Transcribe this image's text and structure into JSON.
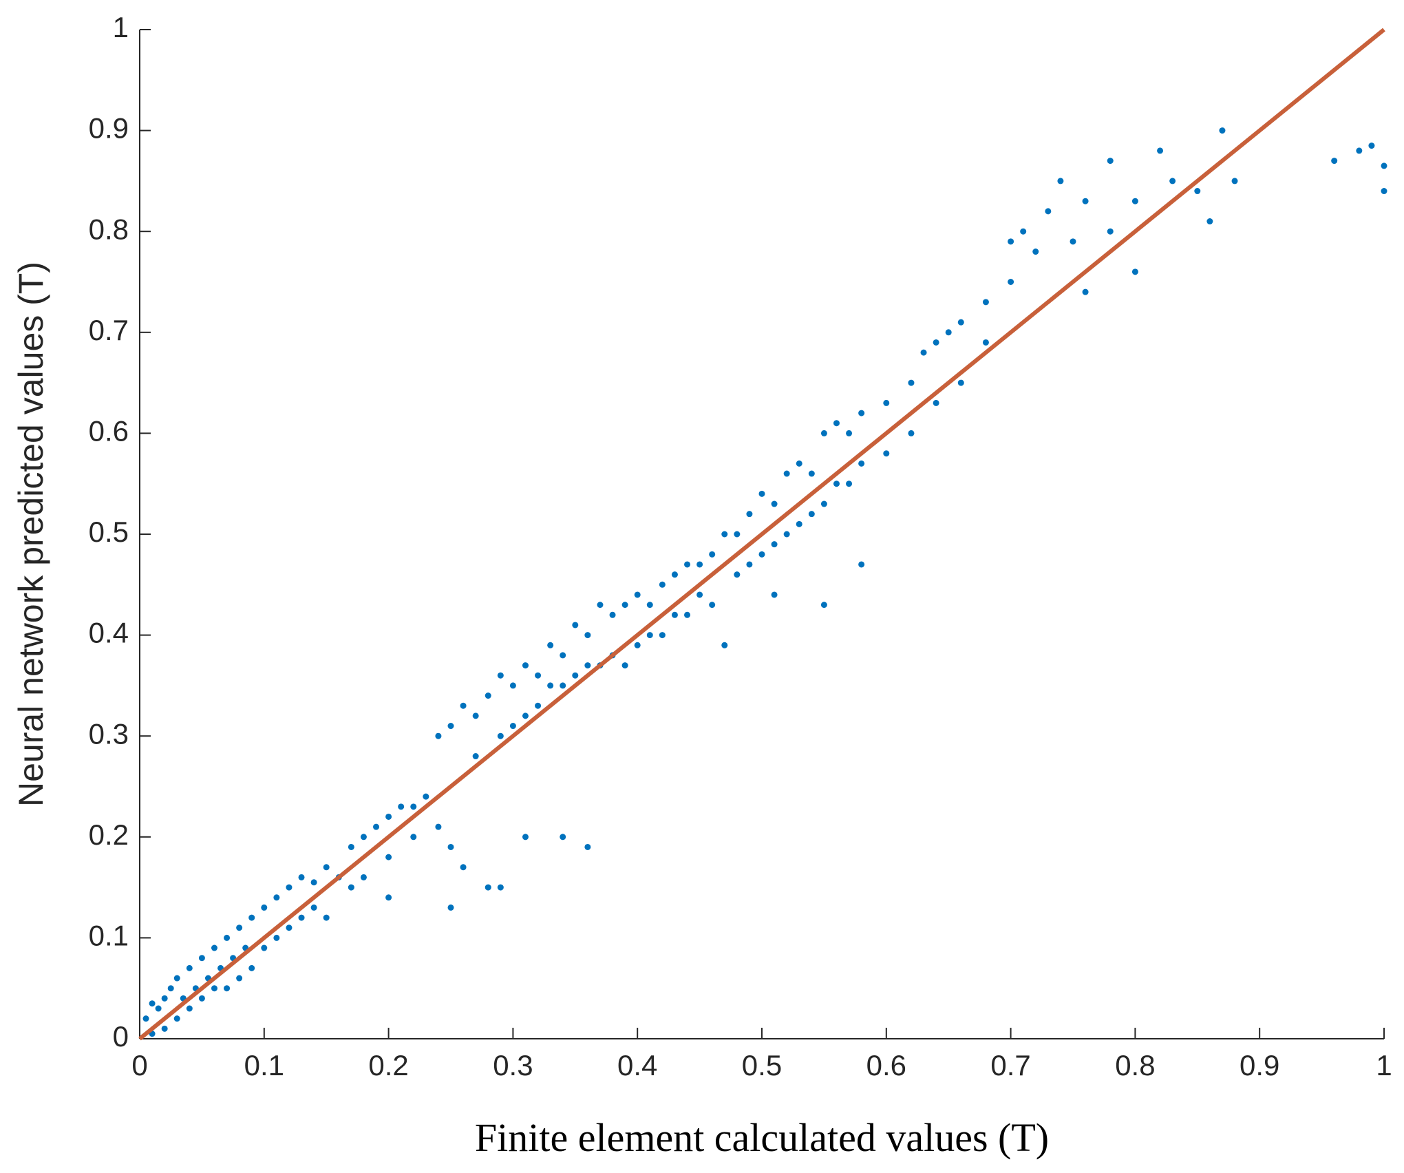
{
  "chart_data": {
    "type": "scatter",
    "xlabel": "Finite element calculated values (T)",
    "ylabel": "Neural network predicted values (T)",
    "xlim": [
      0,
      1
    ],
    "ylim": [
      0,
      1
    ],
    "xticks": [
      0,
      0.1,
      0.2,
      0.3,
      0.4,
      0.5,
      0.6,
      0.7,
      0.8,
      0.9,
      1
    ],
    "yticks": [
      0,
      0.1,
      0.2,
      0.3,
      0.4,
      0.5,
      0.6,
      0.7,
      0.8,
      0.9,
      1
    ],
    "series": [
      {
        "style": "markers",
        "color": "#0072bd",
        "x": [
          0.005,
          0.01,
          0.01,
          0.015,
          0.02,
          0.02,
          0.025,
          0.03,
          0.03,
          0.035,
          0.04,
          0.04,
          0.045,
          0.05,
          0.05,
          0.055,
          0.06,
          0.06,
          0.065,
          0.07,
          0.07,
          0.075,
          0.08,
          0.08,
          0.085,
          0.09,
          0.09,
          0.1,
          0.1,
          0.11,
          0.11,
          0.12,
          0.12,
          0.13,
          0.13,
          0.14,
          0.14,
          0.15,
          0.15,
          0.16,
          0.17,
          0.17,
          0.18,
          0.18,
          0.19,
          0.2,
          0.2,
          0.21,
          0.22,
          0.22,
          0.23,
          0.24,
          0.24,
          0.25,
          0.25,
          0.26,
          0.26,
          0.25,
          0.27,
          0.27,
          0.28,
          0.28,
          0.29,
          0.29,
          0.3,
          0.3,
          0.31,
          0.31,
          0.32,
          0.32,
          0.33,
          0.33,
          0.34,
          0.34,
          0.35,
          0.35,
          0.36,
          0.36,
          0.37,
          0.37,
          0.38,
          0.38,
          0.39,
          0.39,
          0.4,
          0.4,
          0.41,
          0.41,
          0.42,
          0.42,
          0.43,
          0.43,
          0.44,
          0.44,
          0.45,
          0.45,
          0.46,
          0.46,
          0.47,
          0.47,
          0.48,
          0.48,
          0.49,
          0.49,
          0.5,
          0.5,
          0.51,
          0.51,
          0.52,
          0.52,
          0.53,
          0.53,
          0.54,
          0.54,
          0.55,
          0.55,
          0.56,
          0.56,
          0.57,
          0.57,
          0.58,
          0.58,
          0.58,
          0.6,
          0.6,
          0.62,
          0.62,
          0.63,
          0.64,
          0.64,
          0.65,
          0.66,
          0.66,
          0.68,
          0.68,
          0.7,
          0.7,
          0.71,
          0.72,
          0.73,
          0.74,
          0.75,
          0.76,
          0.76,
          0.78,
          0.78,
          0.8,
          0.8,
          0.82,
          0.83,
          0.85,
          0.86,
          0.87,
          0.88,
          0.96,
          0.98,
          0.99,
          1,
          1,
          0.34,
          0.36,
          0.31,
          0.55,
          0.51,
          0.2,
          0.29
        ],
        "values": [
          0.02,
          0.035,
          0.005,
          0.03,
          0.04,
          0.01,
          0.05,
          0.06,
          0.02,
          0.04,
          0.07,
          0.03,
          0.05,
          0.08,
          0.04,
          0.06,
          0.09,
          0.05,
          0.07,
          0.1,
          0.05,
          0.08,
          0.11,
          0.06,
          0.09,
          0.12,
          0.07,
          0.13,
          0.09,
          0.14,
          0.1,
          0.15,
          0.11,
          0.16,
          0.12,
          0.155,
          0.13,
          0.17,
          0.12,
          0.16,
          0.19,
          0.15,
          0.2,
          0.16,
          0.21,
          0.22,
          0.18,
          0.23,
          0.23,
          0.2,
          0.24,
          0.3,
          0.21,
          0.31,
          0.19,
          0.33,
          0.17,
          0.13,
          0.32,
          0.28,
          0.34,
          0.15,
          0.36,
          0.3,
          0.35,
          0.31,
          0.37,
          0.32,
          0.36,
          0.33,
          0.39,
          0.35,
          0.38,
          0.35,
          0.41,
          0.36,
          0.4,
          0.37,
          0.43,
          0.37,
          0.42,
          0.38,
          0.43,
          0.37,
          0.44,
          0.39,
          0.43,
          0.4,
          0.45,
          0.4,
          0.46,
          0.42,
          0.47,
          0.42,
          0.47,
          0.44,
          0.48,
          0.43,
          0.5,
          0.39,
          0.5,
          0.46,
          0.52,
          0.47,
          0.54,
          0.48,
          0.53,
          0.49,
          0.56,
          0.5,
          0.57,
          0.51,
          0.56,
          0.52,
          0.6,
          0.53,
          0.61,
          0.55,
          0.6,
          0.55,
          0.62,
          0.57,
          0.47,
          0.63,
          0.58,
          0.65,
          0.6,
          0.68,
          0.69,
          0.63,
          0.7,
          0.71,
          0.65,
          0.73,
          0.69,
          0.79,
          0.75,
          0.8,
          0.78,
          0.82,
          0.85,
          0.79,
          0.83,
          0.74,
          0.87,
          0.8,
          0.83,
          0.76,
          0.88,
          0.85,
          0.84,
          0.81,
          0.9,
          0.85,
          0.87,
          0.88,
          0.885,
          0.865,
          0.84,
          0.2,
          0.19,
          0.2,
          0.43,
          0.44,
          0.14,
          0.15
        ]
      },
      {
        "style": "line",
        "color": "#c8603a",
        "x": [
          0,
          1
        ],
        "values": [
          0,
          1
        ]
      }
    ]
  }
}
